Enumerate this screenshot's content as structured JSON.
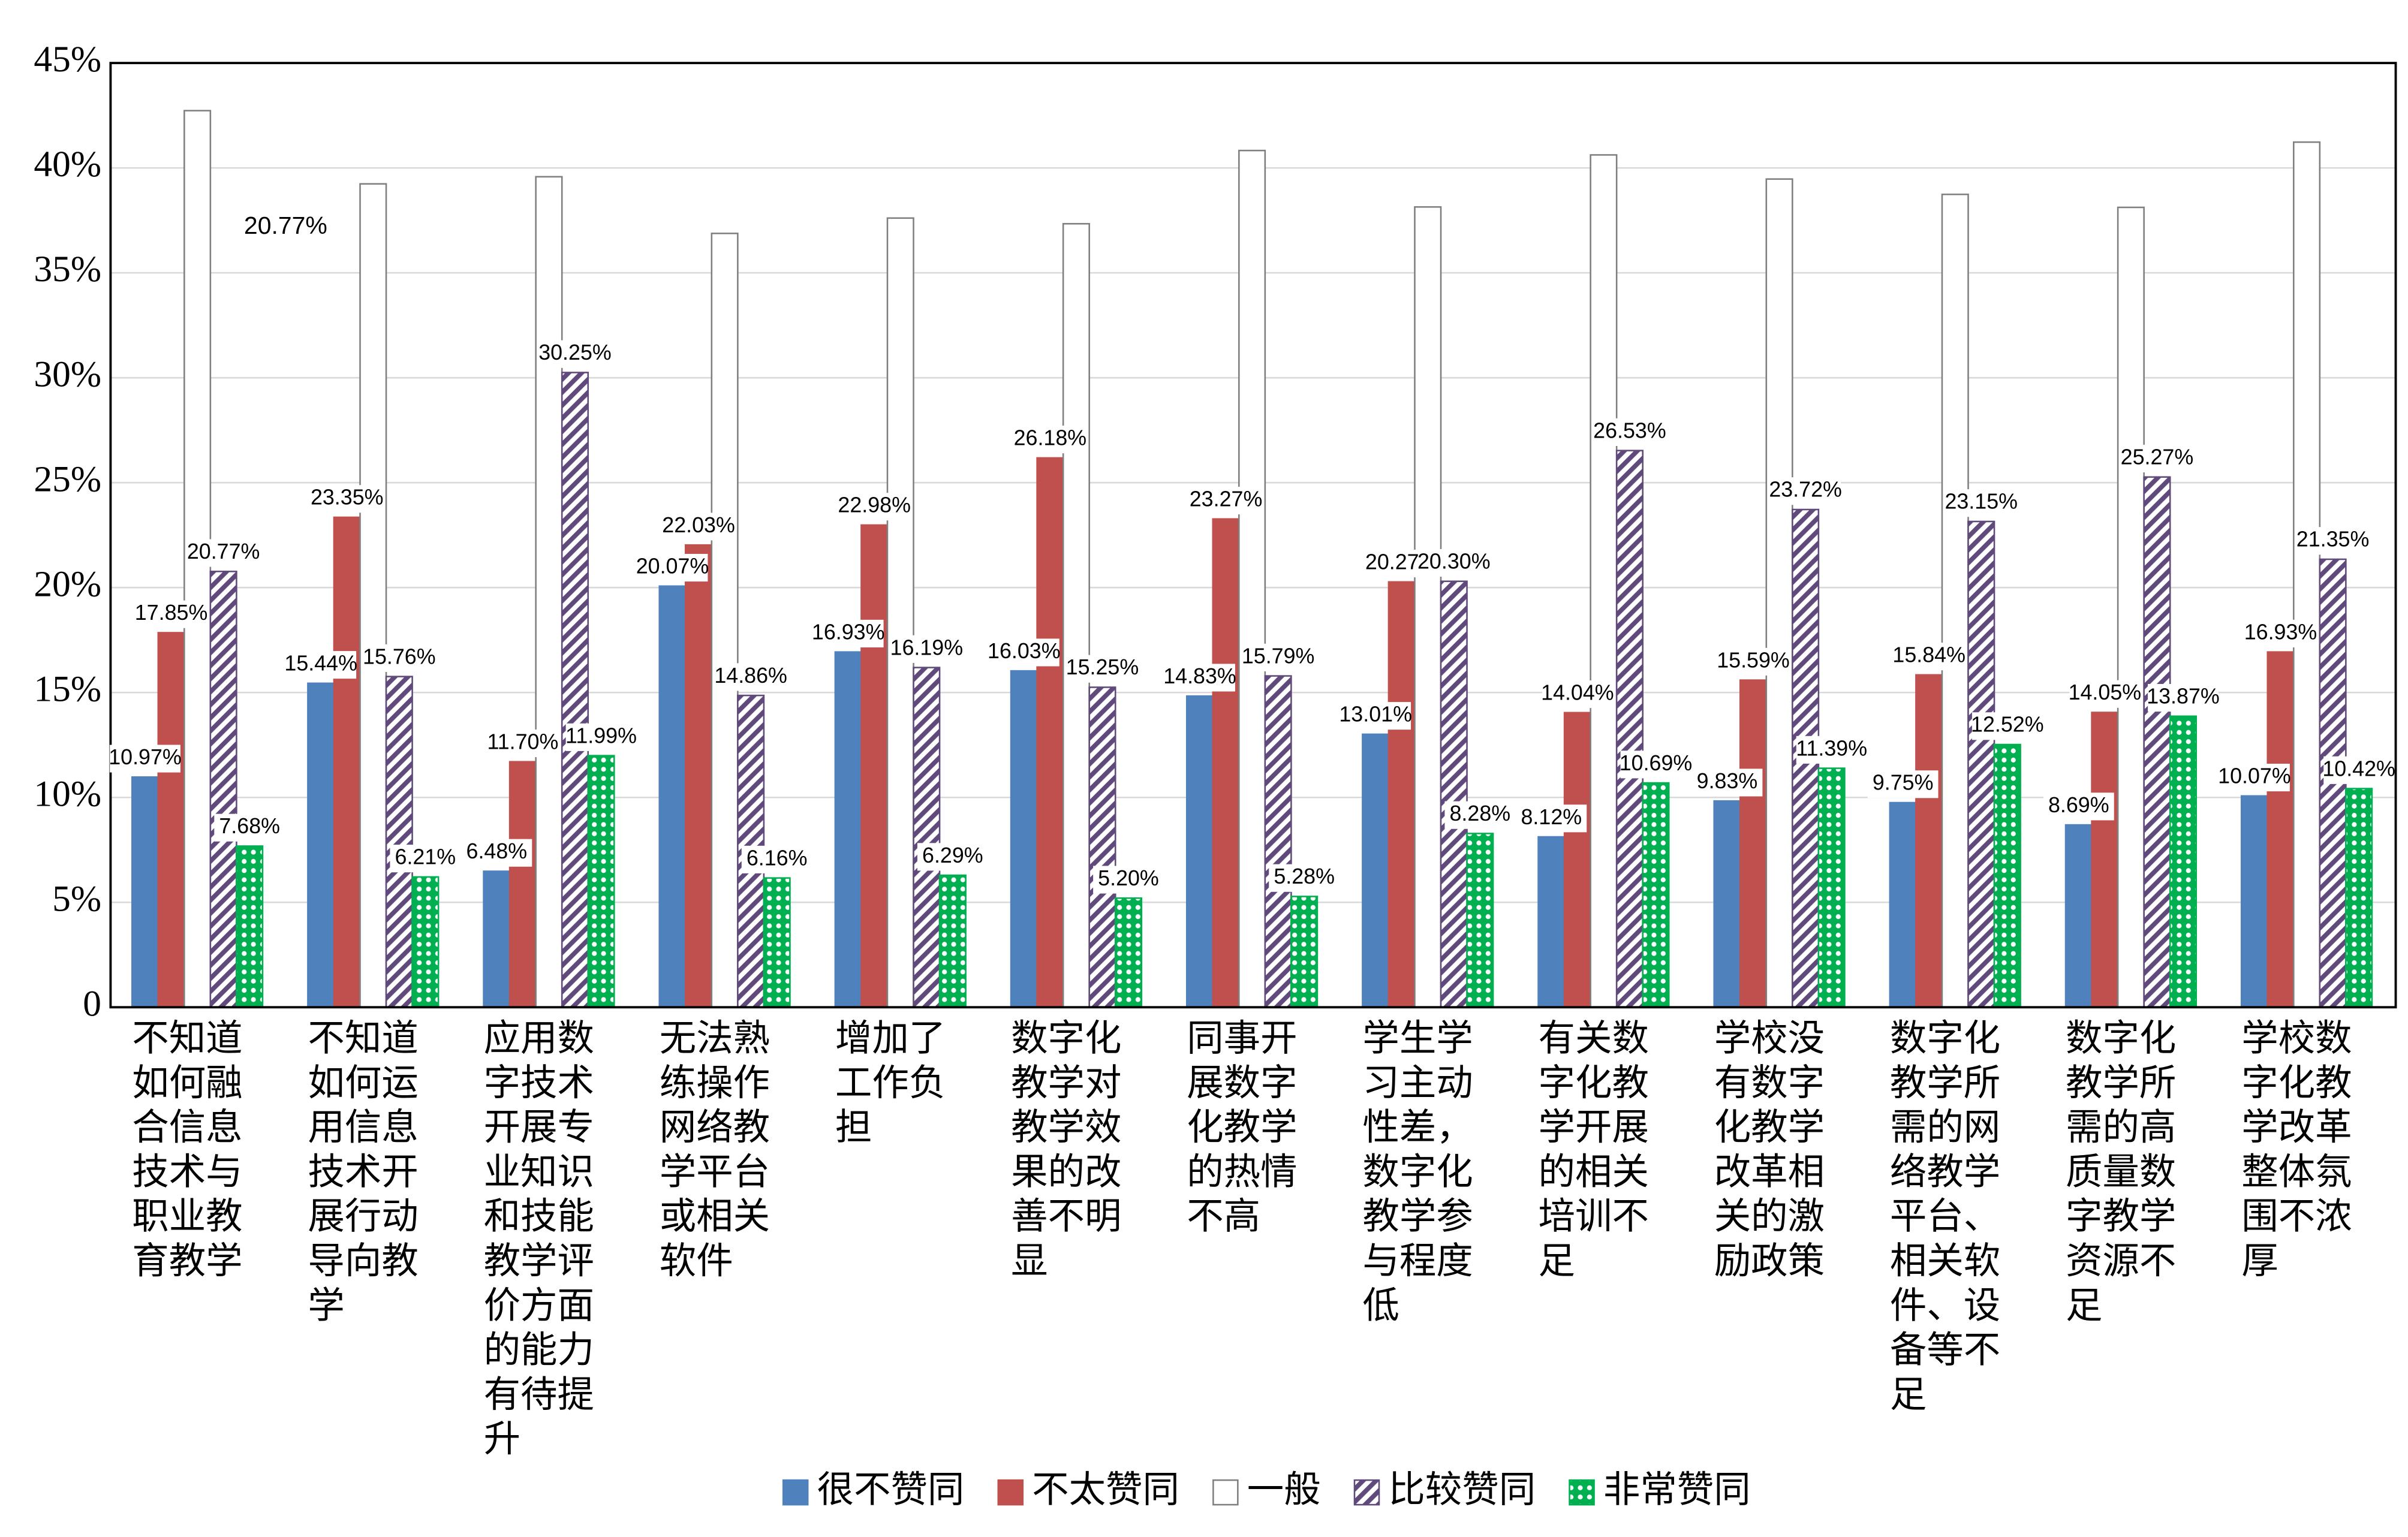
{
  "chart_data": {
    "type": "bar",
    "categories": [
      "不知道如何融合信息技术与职业教育教学",
      "不知道如何运用信息技术开展行动导向教学",
      "应用数字技术开展专业知识和技能教学评价方面的能力有待提升",
      "无法熟练操作网络教学平台或相关软件",
      "增加了工作负担",
      "数字化教学对教学效果的改善不明显",
      "同事开展数字化教学的热情不高",
      "学生学习主动性差，数字化教学参与程度低",
      "有关数字化教学开展的相关培训不足",
      "学校没有数字化教学改革相关的激励政策",
      "数字化教学所需的网络教学平台、相关软件、设备等不足",
      "数字化教学所需的高质量数字教学资源不足",
      "学校数字化教学改革整体氛围不浓厚"
    ],
    "series": [
      {
        "name": "很不赞同",
        "color": "#4f81bd",
        "pattern": "solid",
        "values": [
          10.97,
          15.44,
          6.48,
          20.07,
          16.93,
          16.03,
          14.83,
          13.01,
          8.12,
          9.83,
          9.75,
          8.69,
          10.07
        ],
        "value_labels": [
          "10.97%",
          "15.44%",
          "6.48%",
          "20.07%",
          "16.93%",
          "16.03%",
          "14.83%",
          "13.01%",
          "8.12%",
          "9.83%",
          "9.75%",
          "8.69%",
          "10.07%"
        ]
      },
      {
        "name": "不太赞同",
        "color": "#c0504d",
        "pattern": "solid",
        "values": [
          17.85,
          23.35,
          11.7,
          22.03,
          22.98,
          26.18,
          23.27,
          20.27,
          14.04,
          15.59,
          15.84,
          14.05,
          16.93
        ],
        "value_labels": [
          "17.85%",
          "23.35%",
          "11.70%",
          "22.03%",
          "22.98%",
          "26.18%",
          "23.27%",
          "20.27%",
          "14.04%",
          "15.59%",
          "15.84%",
          "14.05%",
          "16.93%"
        ]
      },
      {
        "name": "一般",
        "color": "#ffffff",
        "pattern": "solid",
        "values": [
          42.73,
          39.24,
          39.58,
          36.88,
          37.61,
          37.34,
          40.83,
          38.14,
          40.62,
          39.47,
          38.74,
          38.12,
          41.23
        ]
      },
      {
        "name": "比较赞同",
        "color": "#604a7b",
        "pattern": "hatch",
        "values": [
          20.77,
          15.76,
          30.25,
          14.86,
          16.19,
          15.25,
          15.79,
          20.3,
          26.53,
          23.72,
          23.15,
          25.27,
          21.35
        ],
        "value_labels": [
          "20.77%",
          "15.76%",
          "30.25%",
          "14.86%",
          "16.19%",
          "15.25%",
          "15.79%",
          "20.30%",
          "26.53%",
          "23.72%",
          "23.15%",
          "25.27%",
          "21.35%"
        ]
      },
      {
        "name": "非常赞同",
        "color": "#00b050",
        "pattern": "checker",
        "values": [
          7.68,
          6.21,
          11.99,
          6.16,
          6.29,
          5.2,
          5.28,
          8.28,
          10.69,
          11.39,
          12.52,
          13.87,
          10.42
        ],
        "value_labels": [
          "7.68%",
          "6.21%",
          "11.99%",
          "6.16%",
          "6.29%",
          "5.20%",
          "5.28%",
          "8.28%",
          "10.69%",
          "11.39%",
          "12.52%",
          "13.87%",
          "10.42%"
        ]
      }
    ],
    "annotation": "20.77%",
    "ylim": [
      0,
      45
    ],
    "yticks": [
      0,
      {
        "value": 5,
        "label": "5%"
      },
      {
        "value": 10,
        "label": "10%"
      },
      {
        "value": 15,
        "label": "15%"
      },
      {
        "value": 20,
        "label": "20%"
      },
      {
        "value": 25,
        "label": "25%"
      },
      {
        "value": 30,
        "label": "30%"
      },
      {
        "value": 35,
        "label": "35%"
      },
      {
        "value": 40,
        "label": "40%"
      },
      {
        "value": 45,
        "label": "45%"
      }
    ],
    "grid": true,
    "legend": "bottom"
  }
}
